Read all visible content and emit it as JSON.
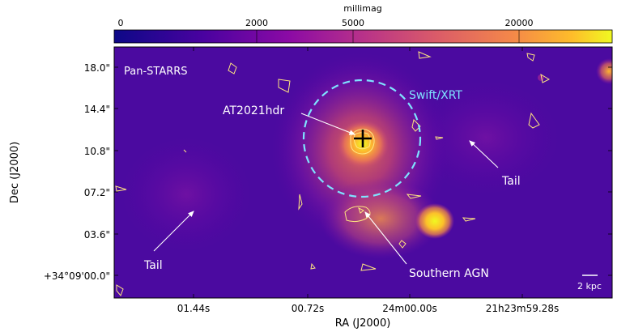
{
  "colorbar": {
    "label": "millimag",
    "ticks": [
      "0",
      "2000",
      "5000",
      "20000"
    ]
  },
  "image": {
    "survey_label": "Pan-STARRS",
    "aperture_label": "Swift/XRT",
    "colormap": [
      "#0d0887",
      "#5c01a6",
      "#9c179e",
      "#cc4778",
      "#ed7953",
      "#fdb42f",
      "#f0f921"
    ]
  },
  "annotations": {
    "transient": "AT2021hdr",
    "tail_right": "Tail",
    "tail_left": "Tail",
    "southern_agn": "Southern AGN",
    "scalebar": "2 kpc"
  },
  "axes": {
    "xlabel": "RA (J2000)",
    "ylabel": "Dec (J2000)",
    "xticks": [
      "01.44s",
      "00.72s",
      "24m00.00s",
      "21h23m59.28s"
    ],
    "yticks": [
      "18.0\"",
      "14.4\"",
      "10.8\"",
      "07.2\"",
      "03.6\"",
      "+34°09'00.0\""
    ]
  },
  "colors": {
    "annotation_text": "#ffffff",
    "aperture": "#7fe3ff",
    "contour": "#ffe680",
    "marker": "#000000"
  }
}
